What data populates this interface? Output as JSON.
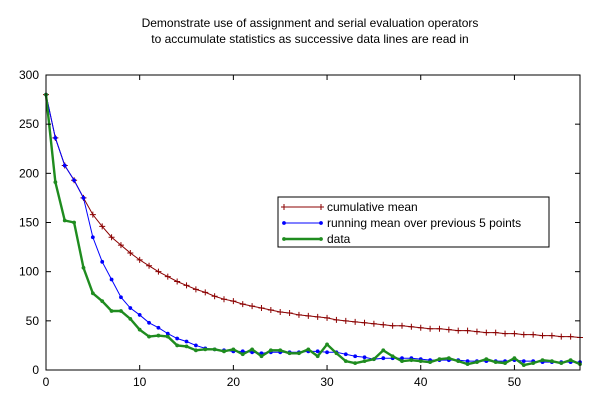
{
  "chart_data": {
    "type": "line",
    "title": "Demonstrate use of assignment and serial evaluation operators",
    "subtitle": "to accumulate statistics as successive data lines are read in",
    "xlabel": "",
    "ylabel": "",
    "xlim": [
      0,
      57
    ],
    "ylim": [
      0,
      300
    ],
    "x_ticks": [
      0,
      10,
      20,
      30,
      40,
      50
    ],
    "y_ticks": [
      0,
      50,
      100,
      150,
      200,
      250,
      300
    ],
    "grid": false,
    "legend_position": "center-right",
    "x": [
      0,
      1,
      2,
      3,
      4,
      5,
      6,
      7,
      8,
      9,
      10,
      11,
      12,
      13,
      14,
      15,
      16,
      17,
      18,
      19,
      20,
      21,
      22,
      23,
      24,
      25,
      26,
      27,
      28,
      29,
      30,
      31,
      32,
      33,
      34,
      35,
      36,
      37,
      38,
      39,
      40,
      41,
      42,
      43,
      44,
      45,
      46,
      47,
      48,
      49,
      50,
      51,
      52,
      53,
      54,
      55,
      56,
      57
    ],
    "series": [
      {
        "name": "cumulative mean",
        "color": "#8b0000",
        "marker": "plus",
        "values": [
          280,
          236,
          208,
          193,
          175,
          158,
          146,
          135,
          127,
          119,
          112,
          106,
          100,
          95,
          90,
          86,
          82,
          79,
          75,
          72,
          70,
          67,
          65,
          63,
          61,
          59,
          58,
          56,
          55,
          54,
          53,
          51,
          50,
          49,
          48,
          47,
          46,
          45,
          45,
          44,
          43,
          42,
          42,
          41,
          40,
          40,
          39,
          38,
          38,
          37,
          37,
          36,
          36,
          35,
          35,
          34,
          34,
          33
        ]
      },
      {
        "name": "running mean over previous 5 points",
        "color": "#0000ff",
        "marker": "dot",
        "values": [
          280,
          236,
          208,
          193,
          175,
          135,
          110,
          92,
          74,
          63,
          56,
          48,
          43,
          37,
          32,
          29,
          25,
          22,
          21,
          20,
          19,
          19,
          18,
          17,
          18,
          18,
          18,
          18,
          19,
          19,
          18,
          18,
          16,
          14,
          13,
          11,
          12,
          12,
          12,
          12,
          11,
          10,
          10,
          10,
          10,
          9,
          9,
          9,
          9,
          9,
          10,
          9,
          9,
          8,
          8,
          8,
          8,
          8
        ]
      },
      {
        "name": "data",
        "color": "#1f8c1f",
        "marker": "dot",
        "values": [
          280,
          191,
          152,
          150,
          104,
          78,
          70,
          60,
          60,
          52,
          41,
          34,
          35,
          34,
          25,
          24,
          20,
          21,
          21,
          19,
          21,
          16,
          21,
          14,
          20,
          20,
          17,
          17,
          21,
          14,
          26,
          17,
          9,
          7,
          9,
          11,
          20,
          14,
          9,
          10,
          9,
          8,
          11,
          12,
          9,
          6,
          8,
          11,
          8,
          7,
          12,
          5,
          7,
          10,
          9,
          7,
          10,
          6
        ]
      }
    ]
  }
}
